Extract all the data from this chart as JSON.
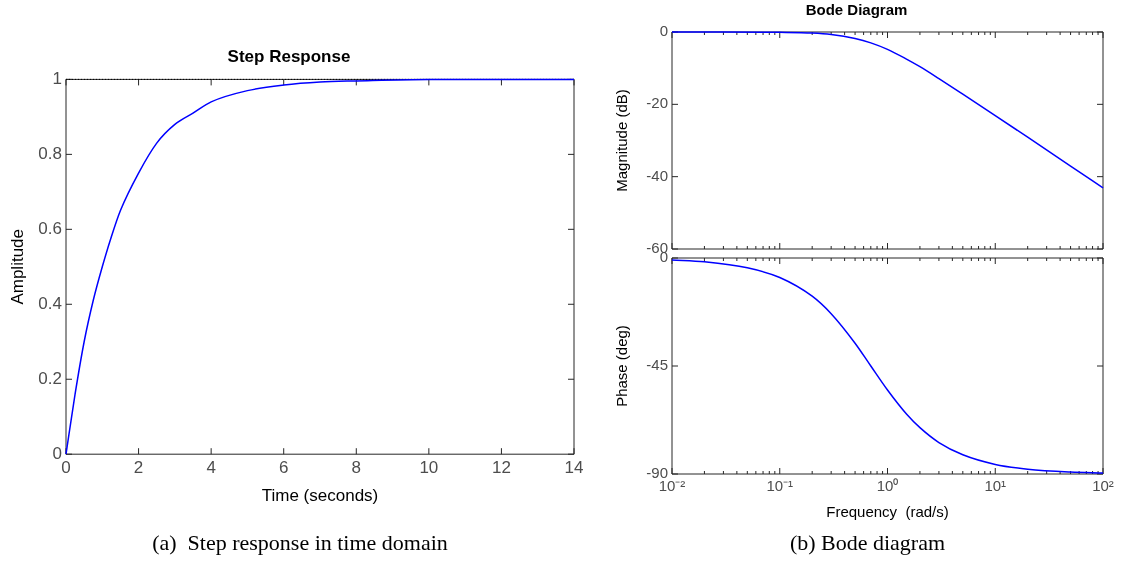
{
  "chart_data": [
    {
      "type": "line",
      "title": "Step Response",
      "xlabel": "Time (seconds)",
      "ylabel": "Amplitude",
      "x": [
        0,
        0.25,
        0.5,
        0.75,
        1,
        1.25,
        1.5,
        2,
        2.5,
        3,
        3.5,
        4,
        5,
        6,
        7,
        8,
        10,
        12,
        14
      ],
      "series": [
        {
          "color": "#0000ff",
          "values": [
            0,
            0.16,
            0.3,
            0.41,
            0.5,
            0.58,
            0.65,
            0.75,
            0.83,
            0.88,
            0.91,
            0.94,
            0.97,
            0.985,
            0.993,
            0.996,
            1,
            1,
            1
          ]
        }
      ],
      "xlim": [
        0,
        14
      ],
      "xticks": [
        0,
        2,
        4,
        6,
        8,
        10,
        12,
        14
      ],
      "ylim": [
        0,
        1
      ],
      "yticks": [
        0,
        0.2,
        0.4,
        0.6,
        0.8,
        1
      ],
      "ref_lines": [
        {
          "axis": "y",
          "value": 1,
          "color": "#000000",
          "line_style": "dotted"
        }
      ],
      "annotations": [
        "(a)  Step response in time domain"
      ]
    },
    {
      "type": "line",
      "title": "Bode Diagram",
      "ylabel": "Magnitude (dB)",
      "log": "x",
      "x": [
        0.01,
        0.03,
        0.1,
        0.2,
        0.3,
        0.5,
        0.7,
        1,
        1.5,
        2,
        3,
        5,
        10,
        20,
        50,
        100
      ],
      "series": [
        {
          "color": "#0000ff",
          "values": [
            0,
            0,
            -0.1,
            -0.3,
            -0.7,
            -1.8,
            -3,
            -4.8,
            -7.5,
            -9.6,
            -12.9,
            -17.2,
            -23.1,
            -29.1,
            -37.1,
            -43.1
          ]
        }
      ],
      "xlim": [
        0.01,
        100
      ],
      "xticks": [
        {
          "value": 0.01,
          "label": null
        },
        {
          "value": 0.02,
          "label": null
        },
        {
          "value": 0.03,
          "label": null
        },
        {
          "value": 0.04,
          "label": null
        },
        {
          "value": 0.05,
          "label": null
        },
        {
          "value": 0.06,
          "label": null
        },
        {
          "value": 0.07,
          "label": null
        },
        {
          "value": 0.08,
          "label": null
        },
        {
          "value": 0.09,
          "label": null
        },
        {
          "value": 0.1,
          "label": null
        },
        {
          "value": 0.2,
          "label": null
        },
        {
          "value": 0.3,
          "label": null
        },
        {
          "value": 0.4,
          "label": null
        },
        {
          "value": 0.5,
          "label": null
        },
        {
          "value": 0.6,
          "label": null
        },
        {
          "value": 0.7,
          "label": null
        },
        {
          "value": 0.8,
          "label": null
        },
        {
          "value": 0.9,
          "label": null
        },
        {
          "value": 1,
          "label": null
        },
        {
          "value": 2,
          "label": null
        },
        {
          "value": 3,
          "label": null
        },
        {
          "value": 4,
          "label": null
        },
        {
          "value": 5,
          "label": null
        },
        {
          "value": 6,
          "label": null
        },
        {
          "value": 7,
          "label": null
        },
        {
          "value": 8,
          "label": null
        },
        {
          "value": 9,
          "label": null
        },
        {
          "value": 10,
          "label": null
        },
        {
          "value": 20,
          "label": null
        },
        {
          "value": 30,
          "label": null
        },
        {
          "value": 40,
          "label": null
        },
        {
          "value": 50,
          "label": null
        },
        {
          "value": 60,
          "label": null
        },
        {
          "value": 70,
          "label": null
        },
        {
          "value": 80,
          "label": null
        },
        {
          "value": 90,
          "label": null
        },
        {
          "value": 100,
          "label": null
        }
      ],
      "ylim": [
        -60,
        0
      ],
      "yticks": [
        -60,
        -40,
        -20,
        0
      ],
      "tick_labels": "y"
    },
    {
      "type": "line",
      "xlabel": "Frequency  (rad/s)",
      "ylabel": "Phase (deg)",
      "log": "x",
      "x": [
        0.01,
        0.02,
        0.05,
        0.1,
        0.2,
        0.3,
        0.5,
        0.7,
        1,
        1.5,
        2,
        3,
        5,
        10,
        20,
        50,
        100
      ],
      "series": [
        {
          "color": "#0000ff",
          "values": [
            -0.8,
            -1.6,
            -4.1,
            -8.1,
            -15.9,
            -23.2,
            -35.5,
            -45,
            -55,
            -65,
            -70.7,
            -76.9,
            -82,
            -86,
            -88,
            -89.2,
            -89.6
          ]
        }
      ],
      "xlim": [
        0.01,
        100
      ],
      "xticks": [
        {
          "value": 0.01,
          "label": "10⁻²"
        },
        {
          "value": 0.02,
          "label": null
        },
        {
          "value": 0.03,
          "label": null
        },
        {
          "value": 0.04,
          "label": null
        },
        {
          "value": 0.05,
          "label": null
        },
        {
          "value": 0.06,
          "label": null
        },
        {
          "value": 0.07,
          "label": null
        },
        {
          "value": 0.08,
          "label": null
        },
        {
          "value": 0.09,
          "label": null
        },
        {
          "value": 0.1,
          "label": "10⁻¹"
        },
        {
          "value": 0.2,
          "label": null
        },
        {
          "value": 0.3,
          "label": null
        },
        {
          "value": 0.4,
          "label": null
        },
        {
          "value": 0.5,
          "label": null
        },
        {
          "value": 0.6,
          "label": null
        },
        {
          "value": 0.7,
          "label": null
        },
        {
          "value": 0.8,
          "label": null
        },
        {
          "value": 0.9,
          "label": null
        },
        {
          "value": 1,
          "label": "10⁰"
        },
        {
          "value": 2,
          "label": null
        },
        {
          "value": 3,
          "label": null
        },
        {
          "value": 4,
          "label": null
        },
        {
          "value": 5,
          "label": null
        },
        {
          "value": 6,
          "label": null
        },
        {
          "value": 7,
          "label": null
        },
        {
          "value": 8,
          "label": null
        },
        {
          "value": 9,
          "label": null
        },
        {
          "value": 10,
          "label": "10¹"
        },
        {
          "value": 20,
          "label": null
        },
        {
          "value": 30,
          "label": null
        },
        {
          "value": 40,
          "label": null
        },
        {
          "value": 50,
          "label": null
        },
        {
          "value": 60,
          "label": null
        },
        {
          "value": 70,
          "label": null
        },
        {
          "value": 80,
          "label": null
        },
        {
          "value": 90,
          "label": null
        },
        {
          "value": 100,
          "label": "10²"
        }
      ],
      "ylim": [
        -90,
        0
      ],
      "yticks": [
        -90,
        -45,
        0
      ],
      "annotations": [
        "(b) Bode diagram"
      ]
    }
  ]
}
